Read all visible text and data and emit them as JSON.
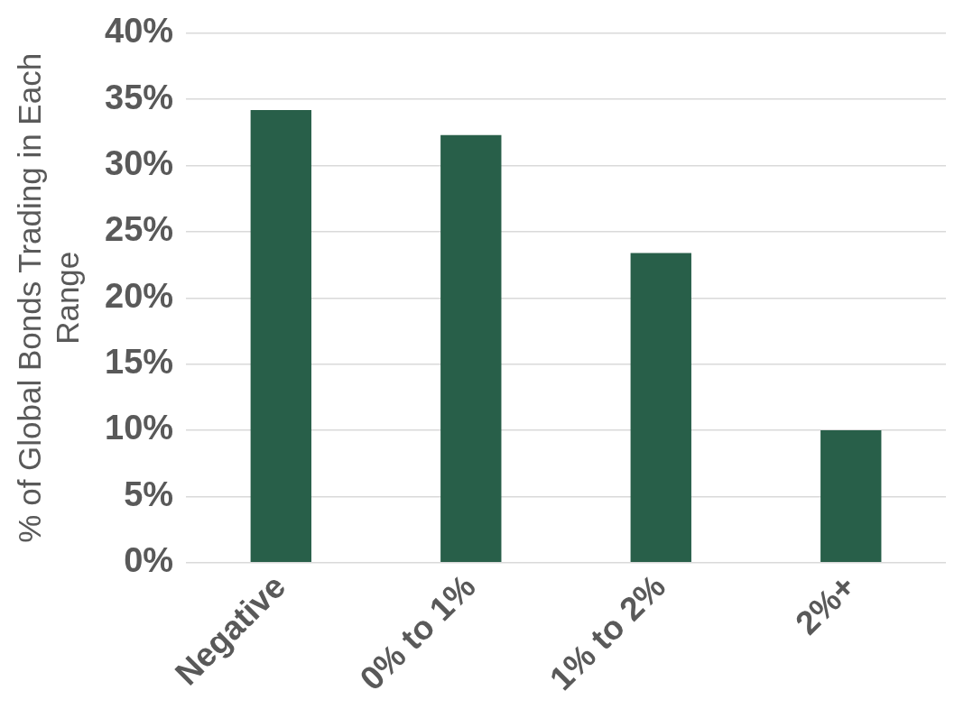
{
  "chart_data": {
    "type": "bar",
    "ylabel": "% of Global Bonds Trading in Each Range",
    "categories": [
      "Negative",
      "0% to 1%",
      "1% to 2%",
      "2%+"
    ],
    "values": [
      34.2,
      32.3,
      23.4,
      10.0
    ],
    "color": "#285f49",
    "ylim": [
      0,
      40
    ],
    "yticks": [
      {
        "value": 0,
        "label": "0%"
      },
      {
        "value": 5,
        "label": "5%"
      },
      {
        "value": 10,
        "label": "10%"
      },
      {
        "value": 15,
        "label": "15%"
      },
      {
        "value": 20,
        "label": "20%"
      },
      {
        "value": 25,
        "label": "25%"
      },
      {
        "value": 30,
        "label": "30%"
      },
      {
        "value": 35,
        "label": "35%"
      },
      {
        "value": 40,
        "label": "40%"
      }
    ],
    "grid": "y",
    "legend": false
  }
}
